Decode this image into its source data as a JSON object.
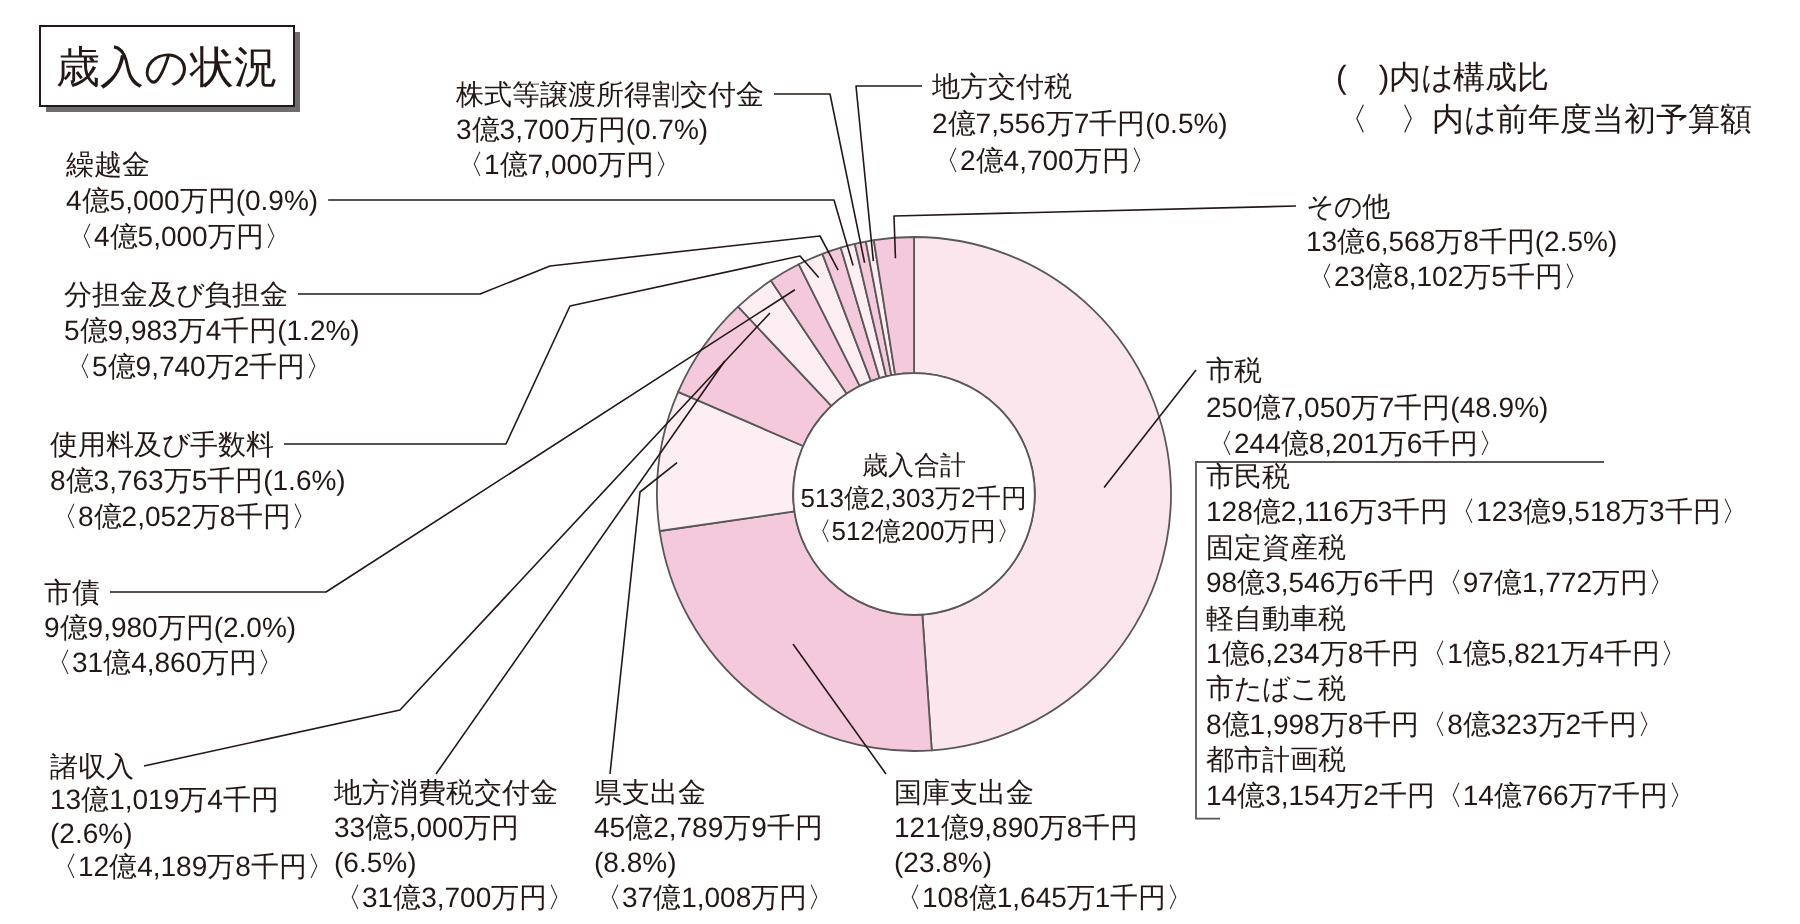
{
  "chart_data": {
    "type": "donut",
    "title": "歳入の状況",
    "categories": [
      "市税",
      "国庫支出金",
      "県支出金",
      "地方消費税交付金",
      "諸収入",
      "市債",
      "使用料及び手数料",
      "分担金及び負担金",
      "繰越金",
      "株式等譲渡所得割交付金",
      "地方交付税",
      "その他"
    ],
    "values": [
      48.9,
      23.8,
      8.8,
      6.5,
      2.6,
      2.0,
      1.6,
      1.2,
      0.9,
      0.7,
      0.5,
      2.5
    ],
    "colors": [
      "#fce6ee",
      "#f5c9dc",
      "#fdeef3",
      "#f5c9dc",
      "#fdeef3",
      "#f5c9dc",
      "#fdeef3",
      "#f5c9dc",
      "#fdeef3",
      "#f5c9dc",
      "#fdeef3",
      "#f5c9dc"
    ],
    "value_labels": [
      "250億7,050万7千円(48.9%)\n〈244億8,201万6千円〉",
      "121億9,890万8千円\n(23.8%)\n〈108億1,645万1千円〉",
      "45億2,789万9千円\n(8.8%)\n〈37億1,008万円〉",
      "33億5,000万円\n(6.5%)\n〈31億3,700万円〉",
      "13億1,019万4千円\n(2.6%)\n〈12億4,189万8千円〉",
      "9億9,980万円(2.0%)\n〈31億4,860万円〉",
      "8億3,763万5千円(1.6%)\n〈8億2,052万8千円〉",
      "5億9,983万4千円(1.2%)\n〈5億9,740万2千円〉",
      "4億5,000万円(0.9%)\n〈4億5,000万円〉",
      "3億3,700万円(0.7%)\n〈1億7,000万円〉",
      "2億7,556万7千円(0.5%)\n〈2億4,700万円〉",
      "13億6,568万8千円(2.5%)\n〈23億8,102万5千円〉"
    ],
    "annotations": [
      "(　)内は構成比",
      "〈　〉内は前年度当初予算額",
      "歳入合計",
      "513億2,303万2千円",
      "〈512億200万円〉",
      "市民税\n128億2,116万3千円〈123億9,518万3千円〉",
      "固定資産税\n98億3,546万6千円〈97億1,772万円〉",
      "軽自動車税\n1億6,234万8千円〈1億5,821万4千円〉",
      "市たばこ税\n8億1,998万8千円〈8億323万2千円〉",
      "都市計画税\n14億3,154万2千円〈14億766万7千円〉"
    ]
  }
}
